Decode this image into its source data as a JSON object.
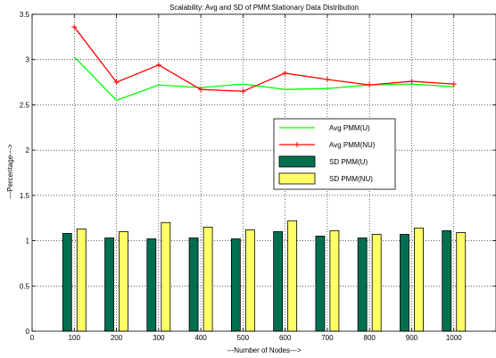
{
  "chart_data": {
    "type": "bar",
    "title": "Scalability: Avg and SD of PMM:Stationary Data Distribution",
    "xlabel": "---Number of Nodes--->",
    "ylabel": "---Percentage--->",
    "xlim": [
      0,
      1100
    ],
    "ylim": [
      0,
      3.5
    ],
    "x": [
      100,
      200,
      300,
      400,
      500,
      600,
      700,
      800,
      900,
      1000
    ],
    "xticks": [
      0,
      100,
      200,
      300,
      400,
      500,
      600,
      700,
      800,
      900,
      1000
    ],
    "xtick_labels": [
      "0",
      "100",
      "200",
      "300",
      "400",
      "500",
      "600",
      "700",
      "800",
      "900",
      "1000"
    ],
    "yticks": [
      0,
      0.5,
      1,
      1.5,
      2,
      2.5,
      3,
      3.5
    ],
    "ytick_labels": [
      "0",
      "0.5",
      "1",
      "1.5",
      "2",
      "2.5",
      "3",
      "3.5"
    ],
    "grid": true,
    "legend_position": "center-right",
    "series": [
      {
        "name": "Avg PMM(U)",
        "kind": "line",
        "color": "#00ff00",
        "marker": "none",
        "values": [
          3.03,
          2.55,
          2.72,
          2.69,
          2.73,
          2.67,
          2.68,
          2.72,
          2.73,
          2.7
        ]
      },
      {
        "name": "Avg PMM(NU)",
        "kind": "line",
        "color": "#ff0000",
        "marker": "plus",
        "values": [
          3.36,
          2.75,
          2.94,
          2.67,
          2.65,
          2.85,
          2.78,
          2.72,
          2.76,
          2.73
        ]
      },
      {
        "name": "SD PMM(U)",
        "kind": "bar",
        "color": "#006f4f",
        "values": [
          1.08,
          1.03,
          1.02,
          1.03,
          1.02,
          1.1,
          1.05,
          1.03,
          1.07,
          1.11
        ]
      },
      {
        "name": "SD PMM(NU)",
        "kind": "bar",
        "color": "#ffff66",
        "values": [
          1.13,
          1.1,
          1.2,
          1.15,
          1.12,
          1.22,
          1.11,
          1.07,
          1.14,
          1.09
        ]
      }
    ]
  }
}
